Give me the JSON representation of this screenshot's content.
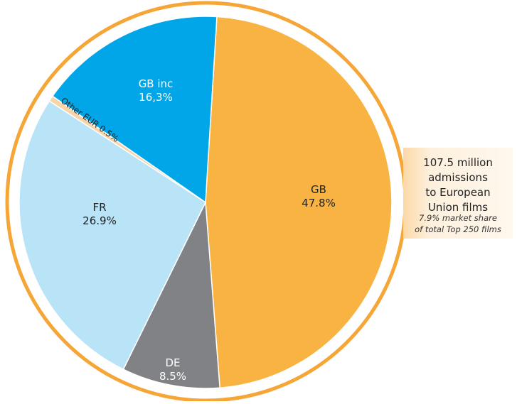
{
  "chart_data": {
    "type": "pie",
    "categories": [
      "GB",
      "DE",
      "FR",
      "Other EUR",
      "GB inc"
    ],
    "values": [
      47.8,
      8.5,
      26.9,
      0.5,
      16.3
    ],
    "value_labels": [
      "47.8%",
      "8.5%",
      "26.9%",
      "0.5%",
      "16,3%"
    ],
    "colors": [
      "#f9b342",
      "#808285",
      "#b9e3f7",
      "#f7d5a8",
      "#00a6e8"
    ],
    "annotation": {
      "lines": [
        "107.5 million",
        "admissions",
        "to European",
        "Union films"
      ],
      "note": [
        "7.9% market share",
        "of total Top 250 films"
      ]
    }
  }
}
